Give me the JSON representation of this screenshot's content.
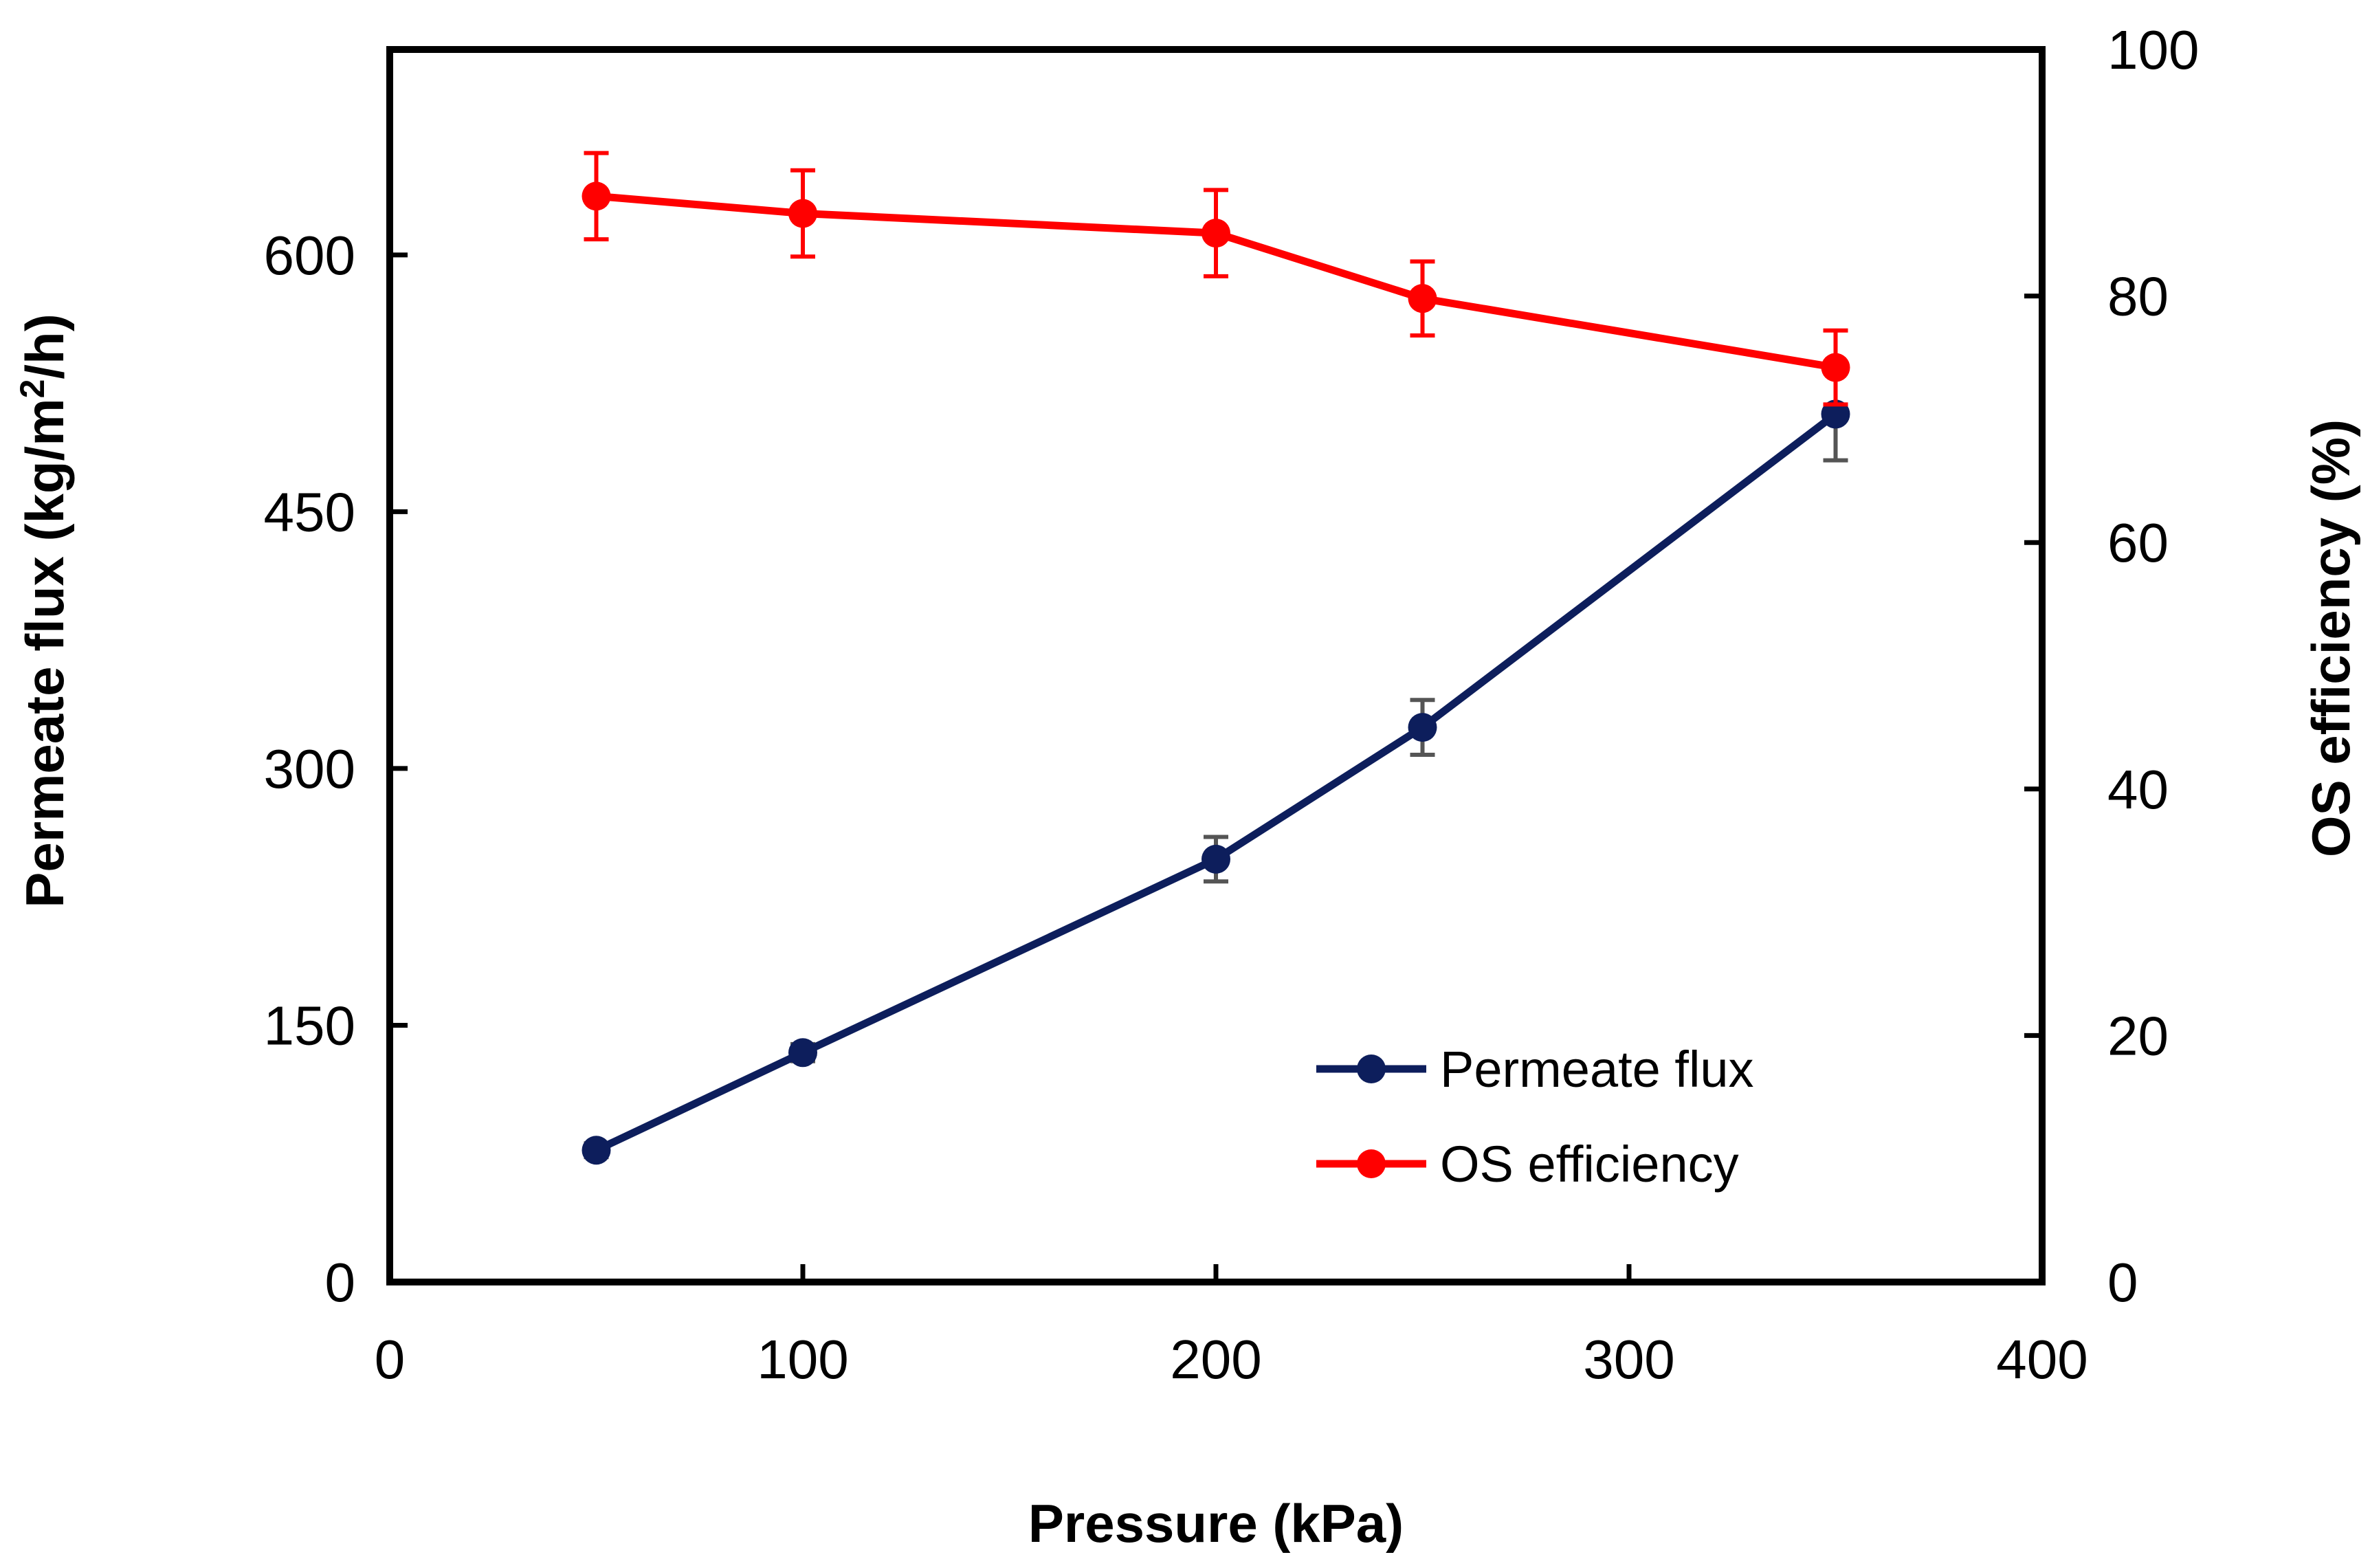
{
  "chart_data": {
    "type": "line",
    "xlabel": "Pressure (kPa)",
    "ylabel_left": {
      "prefix": "Permeate flux (kg/m",
      "sup": "2",
      "suffix": "/h)"
    },
    "ylabel_right": "OS efficiency (%)",
    "xlim": [
      0,
      400
    ],
    "ylim_left": [
      0,
      720
    ],
    "ylim_right": [
      0,
      100
    ],
    "x_ticks": [
      0,
      100,
      200,
      300,
      400
    ],
    "x_tick_labels": [
      "0",
      "100",
      "200",
      "300",
      "400"
    ],
    "y_left_ticks": [
      0,
      150,
      300,
      450,
      600
    ],
    "y_left_tick_labels": [
      "0",
      "150",
      "300",
      "450",
      "600"
    ],
    "y_right_ticks": [
      0,
      20,
      40,
      60,
      80,
      100
    ],
    "y_right_tick_labels": [
      "0",
      "20",
      "40",
      "60",
      "80",
      "100"
    ],
    "grid": false,
    "legend_position": "bottom-right",
    "series": [
      {
        "name": "Permeate flux",
        "axis": "left",
        "color": "#0d1e5c",
        "error_bar_color": "#555555",
        "x": [
          50,
          100,
          200,
          250,
          350
        ],
        "y": [
          77,
          134,
          247,
          324,
          507
        ],
        "error": [
          4,
          5,
          13,
          16,
          27
        ]
      },
      {
        "name": "OS efficiency",
        "axis": "right",
        "color": "#ff0000",
        "error_bar_color": "#ff0000",
        "x": [
          50,
          100,
          200,
          250,
          350
        ],
        "y": [
          88.1,
          86.7,
          85.1,
          79.8,
          74.2
        ],
        "error": [
          3.5,
          3.5,
          3.5,
          3.0,
          3.0
        ]
      }
    ]
  }
}
